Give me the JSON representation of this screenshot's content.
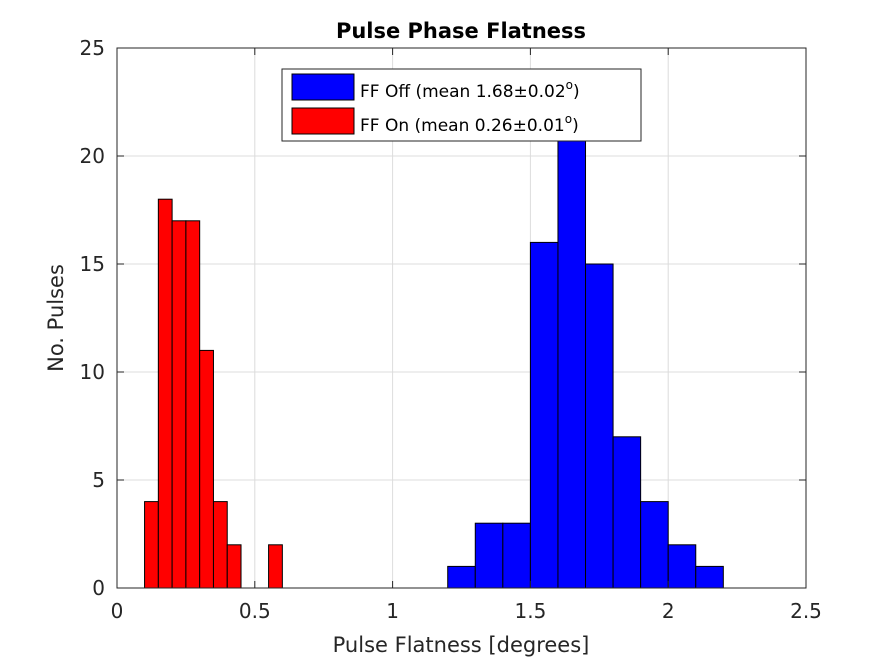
{
  "chart_data": {
    "type": "bar",
    "title": "Pulse Phase Flatness",
    "xlabel": "Pulse Flatness [degrees]",
    "ylabel": "No. Pulses",
    "xlim": [
      0,
      2.5
    ],
    "ylim": [
      0,
      25
    ],
    "xticks": [
      0,
      0.5,
      1,
      1.5,
      2,
      2.5
    ],
    "xtick_labels": [
      "0",
      "0.5",
      "1",
      "1.5",
      "2",
      "2.5"
    ],
    "yticks": [
      0,
      5,
      10,
      15,
      20,
      25
    ],
    "ytick_labels": [
      "0",
      "5",
      "10",
      "15",
      "20",
      "25"
    ],
    "grid": true,
    "legend_position": "top-center",
    "series": [
      {
        "name": "FF Off (mean 1.68±0.02",
        "name_superscript": "o",
        "name_suffix": ")",
        "color": "#0000ff",
        "bin_width": 0.1,
        "bin_edges_start": [
          1.2,
          1.3,
          1.4,
          1.5,
          1.6,
          1.7,
          1.8,
          1.9,
          2.0,
          2.1
        ],
        "values": [
          1,
          3,
          3,
          16,
          21,
          15,
          7,
          4,
          2,
          1
        ]
      },
      {
        "name": "FF On (mean 0.26±0.01",
        "name_superscript": "o",
        "name_suffix": ")",
        "color": "#ff0000",
        "bin_width": 0.05,
        "bin_edges_start": [
          0.1,
          0.15,
          0.2,
          0.25,
          0.3,
          0.35,
          0.4,
          0.45,
          0.5,
          0.55
        ],
        "values": [
          4,
          18,
          17,
          17,
          11,
          4,
          2,
          0,
          0,
          2
        ]
      }
    ]
  }
}
